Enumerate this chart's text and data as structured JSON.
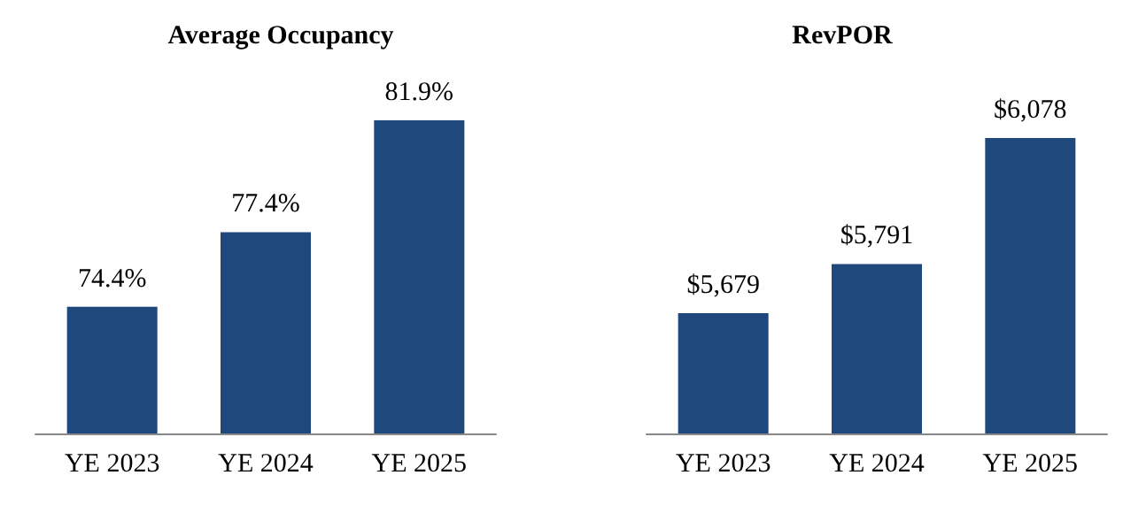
{
  "chart_data": [
    {
      "type": "bar",
      "title": "Average Occupancy",
      "categories": [
        "YE 2023",
        "YE 2024",
        "YE 2025"
      ],
      "values": [
        74.4,
        77.4,
        81.9
      ],
      "value_labels": [
        "74.4%",
        "77.4%",
        "81.9%"
      ],
      "color": "#1f497d",
      "ylim": [
        69.3,
        81.9
      ],
      "tick_labels": "x"
    },
    {
      "type": "bar",
      "title": "RevPOR",
      "categories": [
        "YE 2023",
        "YE 2024",
        "YE 2025"
      ],
      "values": [
        5679,
        5791,
        6078
      ],
      "value_labels": [
        "$5,679",
        "$5,791",
        "$6,078"
      ],
      "color": "#1f497d",
      "ylim": [
        5405,
        6078
      ],
      "tick_labels": "x"
    }
  ]
}
